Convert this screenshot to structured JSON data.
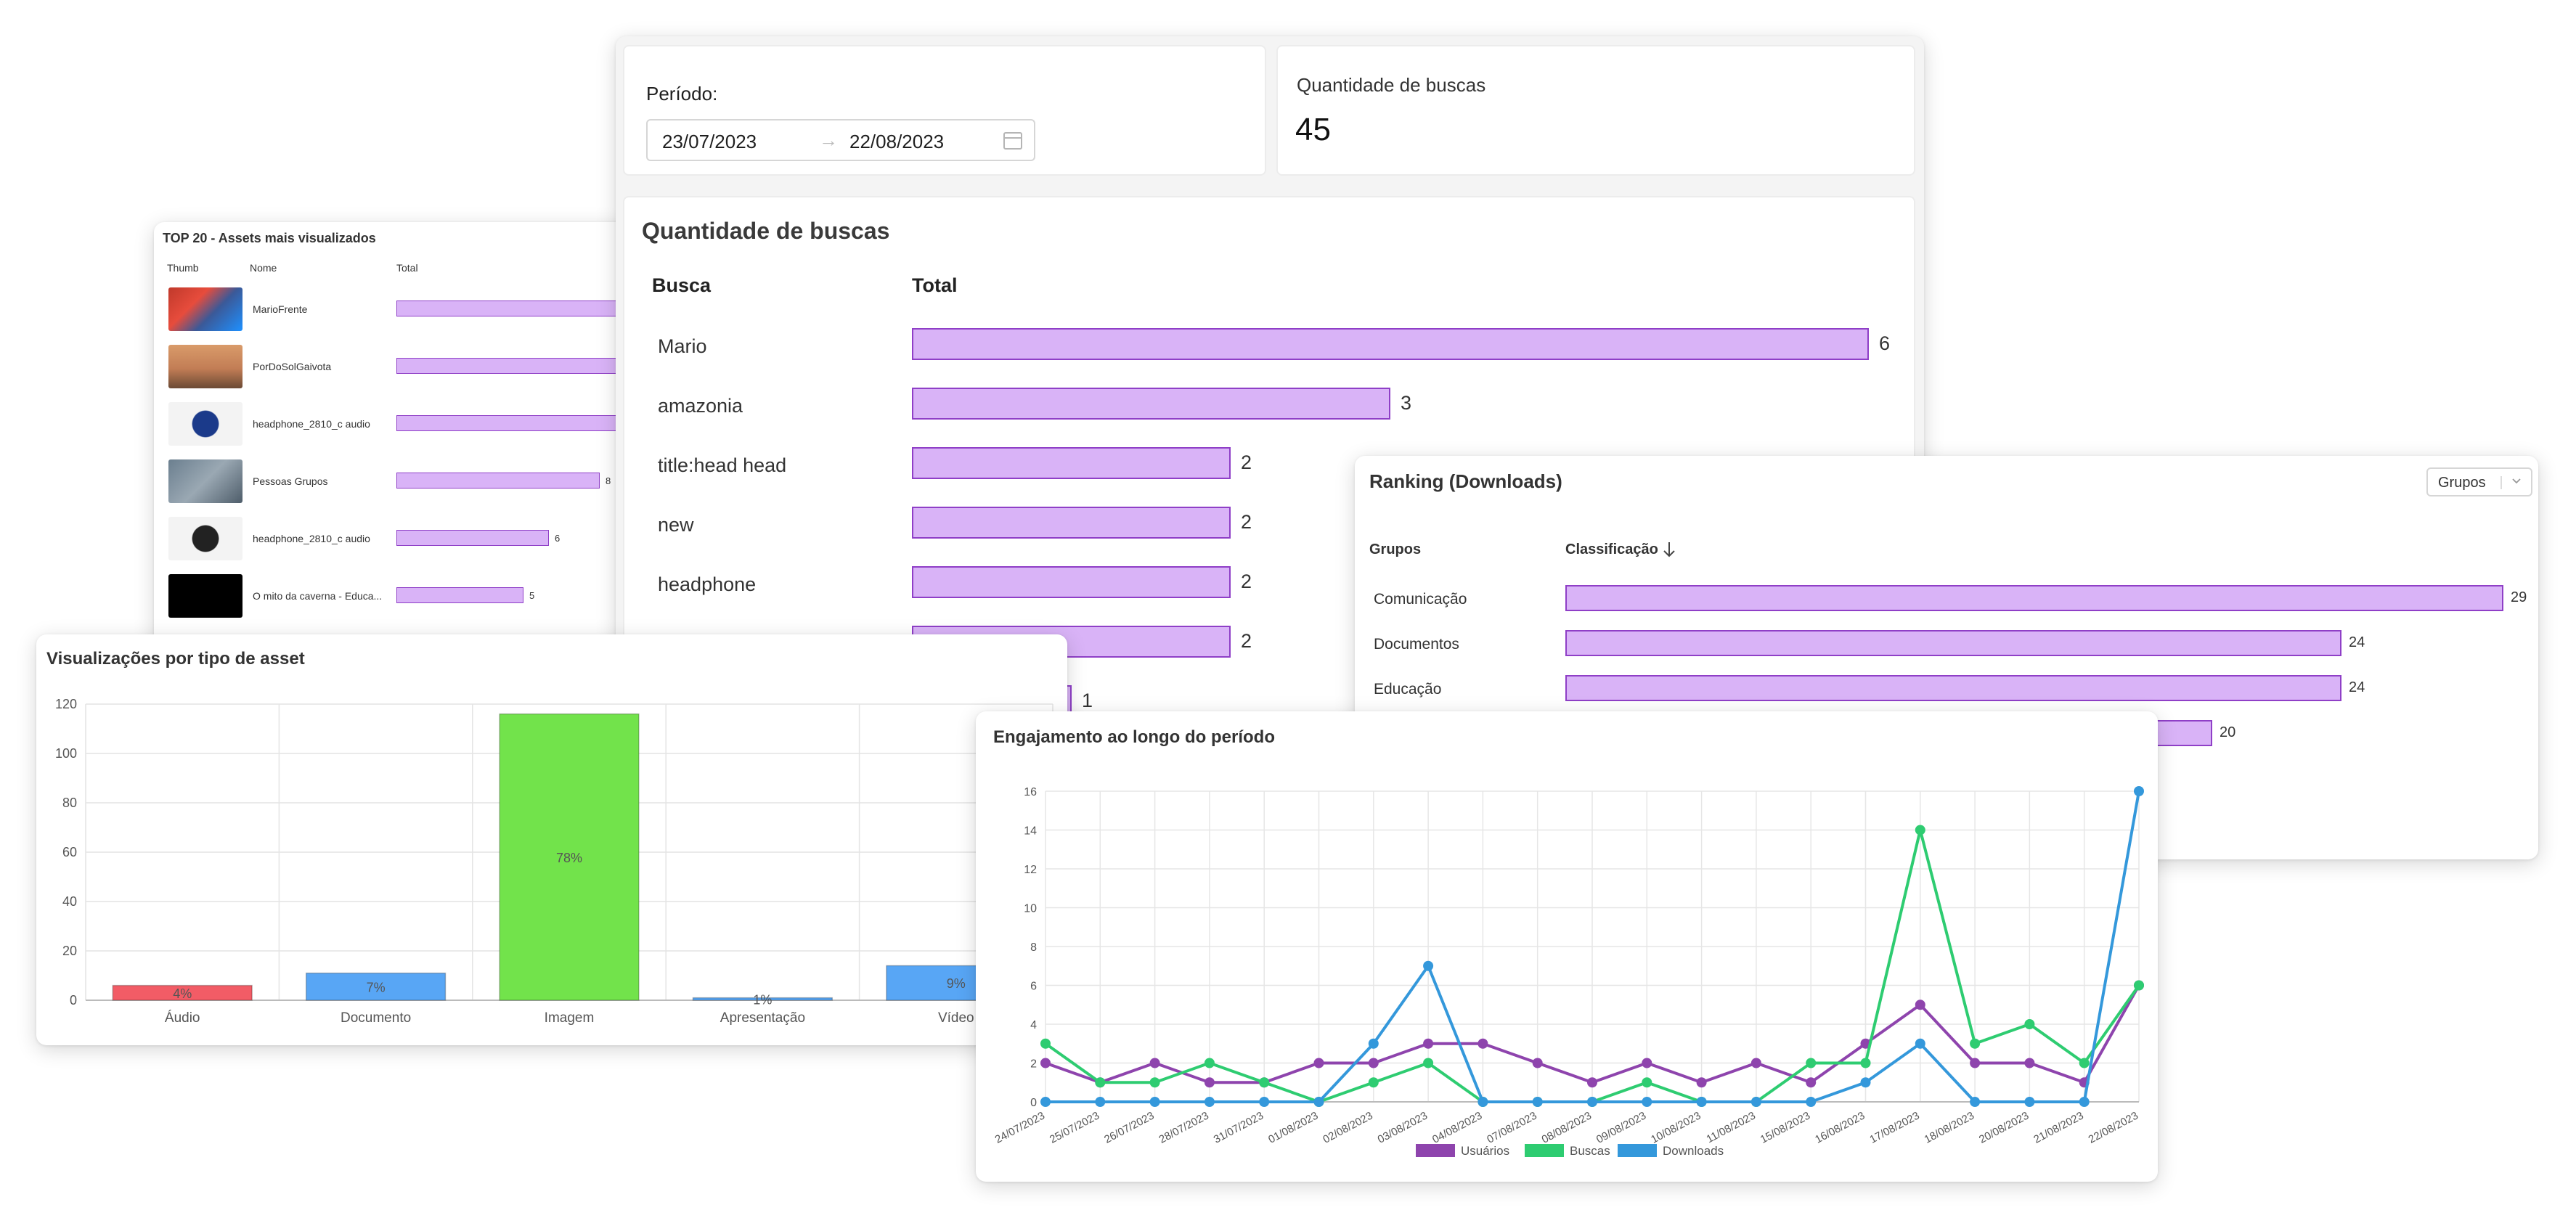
{
  "assets_panel": {
    "title": "TOP 20 - Assets mais visualizados",
    "columns": [
      "Thumb",
      "Nome",
      "Total"
    ],
    "rows": [
      {
        "name": "MarioFrente",
        "total": "",
        "thumb_icon": "mario-thumbnail",
        "fill": 1.0
      },
      {
        "name": "PorDoSolGaivota",
        "total": "",
        "thumb_icon": "sunset-thumbnail",
        "fill": 1.0
      },
      {
        "name": "headphone_2810_c audio",
        "total": "",
        "thumb_icon": "blue-headphone-thumbnail",
        "fill": 1.0
      },
      {
        "name": "Pessoas Grupos",
        "total": "8",
        "thumb_icon": "people-thumbnail",
        "value": 8
      },
      {
        "name": "headphone_2810_c audio",
        "total": "6",
        "thumb_icon": "black-headphone-thumbnail",
        "value": 6
      },
      {
        "name": "O mito da caverna - Educa...",
        "total": "5",
        "thumb_icon": "black-video-thumbnail",
        "value": 5
      }
    ]
  },
  "period_card": {
    "label": "Período:",
    "start": "23/07/2023",
    "arrow": "→",
    "end": "22/08/2023"
  },
  "count_card": {
    "label": "Quantidade de buscas",
    "value": "45"
  },
  "search_table": {
    "title": "Quantidade de buscas",
    "col_query": "Busca",
    "col_total": "Total",
    "rows": [
      {
        "query": "Mario",
        "total": 6,
        "label": "6"
      },
      {
        "query": "amazonia",
        "total": 3,
        "label": "3"
      },
      {
        "query": "title:head head",
        "total": 2,
        "label": "2"
      },
      {
        "query": "new",
        "total": 2,
        "label": "2"
      },
      {
        "query": "headphone",
        "total": 2,
        "label": "2"
      },
      {
        "query": "",
        "total": 2,
        "label": "2"
      },
      {
        "query": "",
        "total": 1,
        "label": "1"
      }
    ]
  },
  "ranking_panel": {
    "title": "Ranking (Downloads)",
    "select_value": "Grupos",
    "col_group": "Grupos",
    "col_rank": "Classificação",
    "rows": [
      {
        "group": "Comunicação",
        "value": 29,
        "label": "29"
      },
      {
        "group": "Documentos",
        "value": 24,
        "label": "24"
      },
      {
        "group": "Educação",
        "value": 24,
        "label": "24"
      },
      {
        "group": "",
        "value": 20,
        "label": "20"
      }
    ]
  },
  "views_panel": {
    "title": "Visualizações por tipo de asset"
  },
  "engagement_panel": {
    "title": "Engajamento ao longo do período"
  },
  "chart_data": [
    {
      "type": "bar",
      "title": "Visualizações por tipo de asset",
      "categories": [
        "Áudio",
        "Documento",
        "Imagem",
        "Apresentação",
        "Vídeo"
      ],
      "values": [
        6,
        11,
        116,
        1,
        14
      ],
      "data_labels": [
        "4%",
        "7%",
        "78%",
        "1%",
        "9%"
      ],
      "colors": [
        "#f25c66",
        "#58a6f5",
        "#72e34b",
        "#58a6f5",
        "#58a6f5"
      ],
      "yticks": [
        "0",
        "20",
        "40",
        "60",
        "80",
        "100",
        "120"
      ],
      "ylim": [
        0,
        120
      ],
      "grid": true
    },
    {
      "type": "line",
      "title": "Engajamento ao longo do período",
      "x": [
        "24/07/2023",
        "25/07/2023",
        "26/07/2023",
        "28/07/2023",
        "31/07/2023",
        "01/08/2023",
        "02/08/2023",
        "03/08/2023",
        "04/08/2023",
        "07/08/2023",
        "08/08/2023",
        "09/08/2023",
        "10/08/2023",
        "11/08/2023",
        "15/08/2023",
        "16/08/2023",
        "17/08/2023",
        "18/08/2023",
        "20/08/2023",
        "21/08/2023",
        "22/08/2023"
      ],
      "yticks": [
        "0",
        "2",
        "4",
        "6",
        "8",
        "10",
        "12",
        "14",
        "16"
      ],
      "ylim": [
        0,
        16
      ],
      "grid": true,
      "legend": "bottom",
      "series": [
        {
          "name": "Usuários",
          "color": "#8e44ad",
          "values": [
            2,
            1,
            2,
            1,
            1,
            2,
            2,
            3,
            3,
            2,
            1,
            2,
            1,
            2,
            1,
            3,
            5,
            2,
            2,
            1,
            6
          ]
        },
        {
          "name": "Buscas",
          "color": "#2ecc71",
          "values": [
            3,
            1,
            1,
            2,
            1,
            0,
            1,
            2,
            0,
            0,
            0,
            1,
            0,
            0,
            2,
            2,
            14,
            3,
            4,
            2,
            6
          ]
        },
        {
          "name": "Downloads",
          "color": "#3498db",
          "values": [
            0,
            0,
            0,
            0,
            0,
            0,
            3,
            7,
            0,
            0,
            0,
            0,
            0,
            0,
            0,
            1,
            3,
            0,
            0,
            0,
            16
          ]
        }
      ]
    }
  ]
}
